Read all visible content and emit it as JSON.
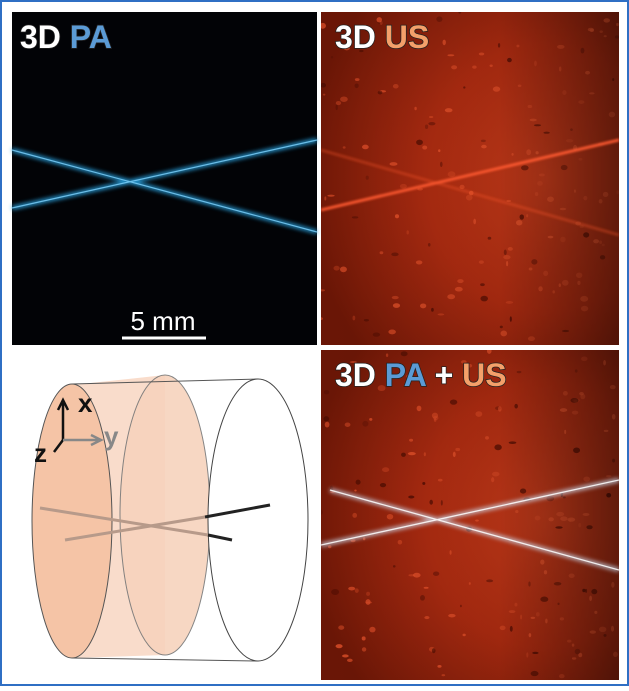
{
  "panels": {
    "pa": {
      "prefix": "3D",
      "modality": "PA"
    },
    "us": {
      "prefix": "3D",
      "modality": "US"
    },
    "combined": {
      "prefix": "3D",
      "first": "PA",
      "joiner": "+",
      "second": "US"
    }
  },
  "scale_bar": "5 mm",
  "axes": {
    "x": "x",
    "y": "y",
    "z": "z"
  }
}
